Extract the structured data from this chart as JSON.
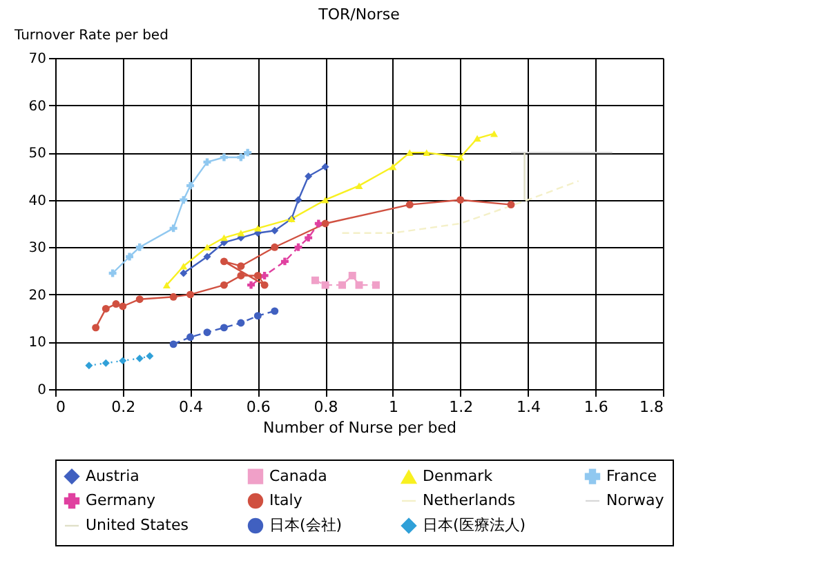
{
  "chart_data": {
    "type": "line",
    "title": "TOR/Norse",
    "xlabel": "Number of Nurse per bed",
    "ylabel": "Turnover Rate per bed",
    "xlim": [
      0,
      1.8
    ],
    "xticks": [
      {
        "value": 0,
        "label": "0"
      },
      0.2,
      0.4,
      0.6,
      0.8,
      {
        "value": 1,
        "label": "1"
      },
      1.2,
      1.4,
      1.6,
      1.8
    ],
    "ylim": [
      0,
      70
    ],
    "yticks": [
      0,
      10,
      20,
      30,
      40,
      50,
      60,
      70
    ],
    "grid": true,
    "legend": "bottom",
    "series": [
      {
        "name": "Austria",
        "color": "#4060c0",
        "marker": "diamond",
        "line_style": "solid",
        "x": [
          0.38,
          0.45,
          0.5,
          0.55,
          0.6,
          0.65,
          0.7,
          0.72,
          0.75,
          0.8
        ],
        "values": [
          24.5,
          28,
          31,
          32,
          33,
          33.5,
          36,
          40,
          45,
          47
        ]
      },
      {
        "name": "Canada",
        "color": "#f0a0c8",
        "marker": "square",
        "line_style": "dashed",
        "x": [
          0.77,
          0.8,
          0.85,
          0.88,
          0.9,
          0.95
        ],
        "values": [
          23,
          22,
          22,
          24,
          22,
          22
        ]
      },
      {
        "name": "Denmark",
        "color": "#f8f020",
        "marker": "triangle",
        "line_style": "solid",
        "x": [
          0.33,
          0.38,
          0.45,
          0.5,
          0.55,
          0.6,
          0.7,
          0.8,
          0.9,
          1.0,
          1.05,
          1.1,
          1.2,
          1.25,
          1.3
        ],
        "values": [
          22,
          26,
          30,
          32,
          33,
          34,
          36,
          40,
          43,
          47,
          50,
          50,
          49,
          53,
          54
        ]
      },
      {
        "name": "France",
        "color": "#90c8f0",
        "marker": "cross",
        "line_style": "solid",
        "x": [
          0.17,
          0.22,
          0.25,
          0.35,
          0.38,
          0.4,
          0.45,
          0.5,
          0.55,
          0.57
        ],
        "values": [
          24.5,
          28,
          30,
          34,
          40,
          43,
          48,
          49,
          49,
          50
        ]
      },
      {
        "name": "Germany",
        "color": "#e040a0",
        "marker": "cross",
        "line_style": "dashed",
        "x": [
          0.58,
          0.62,
          0.68,
          0.72,
          0.75,
          0.78
        ],
        "values": [
          22,
          24,
          27,
          30,
          32,
          35
        ]
      },
      {
        "name": "Italy",
        "color": "#d05040",
        "marker": "circle",
        "line_style": "solid",
        "x": [
          0.12,
          0.15,
          0.18,
          0.2,
          0.25,
          0.35,
          0.4,
          0.5,
          0.55,
          0.6,
          0.62,
          0.5,
          0.55,
          0.65,
          0.8,
          1.05,
          1.2,
          1.35
        ],
        "values": [
          13,
          17,
          18,
          17.5,
          19,
          19.5,
          20,
          22,
          24,
          24,
          22,
          27,
          26,
          30,
          35,
          39,
          40,
          39
        ]
      },
      {
        "name": "Netherlands",
        "color": "#f4f0c8",
        "marker": "none",
        "line_style": "dashed",
        "x": [
          0.85,
          1.0,
          1.2,
          1.4,
          1.55
        ],
        "values": [
          33,
          33,
          35,
          40,
          44
        ]
      },
      {
        "name": "Norway",
        "color": "#d8d8d8",
        "marker": "none",
        "line_style": "solid",
        "x": [
          1.35,
          1.5,
          1.65
        ],
        "values": [
          50,
          50,
          50
        ]
      },
      {
        "name": "United States",
        "color": "#e0e0c8",
        "marker": "none",
        "line_style": "solid",
        "x": [
          1.39,
          1.39
        ],
        "values": [
          40,
          50
        ]
      },
      {
        "name": "日本(会社)",
        "color": "#4060c0",
        "marker": "circle",
        "line_style": "dashed",
        "x": [
          0.35,
          0.4,
          0.45,
          0.5,
          0.55,
          0.6,
          0.65
        ],
        "values": [
          9.5,
          11,
          12,
          13,
          14,
          15.5,
          16.5
        ]
      },
      {
        "name": "日本(医療法人)",
        "color": "#30a0d8",
        "marker": "diamond",
        "line_style": "dotted",
        "x": [
          0.1,
          0.15,
          0.2,
          0.25,
          0.28
        ],
        "values": [
          5,
          5.5,
          6,
          6.5,
          7
        ]
      }
    ]
  }
}
